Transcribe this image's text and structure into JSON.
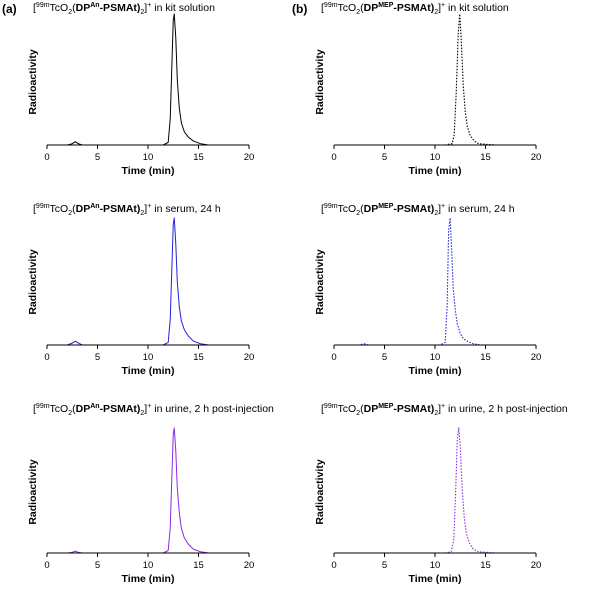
{
  "panel_labels": [
    "(a)",
    "(b)"
  ],
  "chart_data": [
    {
      "type": "line",
      "panel": "(a)",
      "title": "[99mTcO2(DPAn-PSMAt)2]+ in kit solution",
      "title_parts": {
        "pre": "[",
        "iso": "99m",
        "tc": "TcO",
        "sub": "2",
        "open": "(",
        "lig": "DP",
        "ligsup": "An",
        "rest": "-PSMAt)",
        "sub2": "2",
        "close": "]",
        "charge": "+",
        "tail": " in kit solution"
      },
      "xlabel": "Time (min)",
      "ylabel": "Radioactivity",
      "xlim": [
        0,
        20
      ],
      "ylim": [
        0,
        1
      ],
      "x_ticks": [
        0,
        5,
        10,
        15,
        20
      ],
      "line_color": "#000000",
      "line_style": "solid",
      "x": [
        0,
        2.0,
        2.5,
        2.8,
        3.1,
        3.5,
        4.0,
        9.0,
        11.5,
        12.0,
        12.2,
        12.4,
        12.5,
        12.6,
        12.75,
        12.9,
        13.1,
        13.3,
        13.6,
        14.0,
        14.5,
        15.2,
        16.0,
        18.0,
        20
      ],
      "y": [
        0,
        0,
        0.01,
        0.025,
        0.01,
        0,
        0,
        0,
        0,
        0.02,
        0.2,
        0.7,
        0.95,
        1.0,
        0.82,
        0.5,
        0.28,
        0.17,
        0.1,
        0.06,
        0.03,
        0.01,
        0,
        0,
        0
      ]
    },
    {
      "type": "line",
      "panel": "(b)",
      "title": "[99mTcO2(DPMEP-PSMAt)2]+ in kit solution",
      "title_parts": {
        "pre": "[",
        "iso": "99m",
        "tc": "TcO",
        "sub": "2",
        "open": "(",
        "lig": "DP",
        "ligsup": "MEP",
        "rest": "-PSMAt)",
        "sub2": "2",
        "close": "]",
        "charge": "+",
        "tail": " in kit solution"
      },
      "xlabel": "Time (min)",
      "ylabel": "Radioactivity",
      "xlim": [
        0,
        20
      ],
      "ylim": [
        0,
        1
      ],
      "x_ticks": [
        0,
        5,
        10,
        15,
        20
      ],
      "line_color": "#000000",
      "line_style": "dotted",
      "x": [
        0,
        3.0,
        11.0,
        11.7,
        11.9,
        12.1,
        12.3,
        12.45,
        12.6,
        12.8,
        13.0,
        13.2,
        13.5,
        13.9,
        14.3,
        16.0,
        20
      ],
      "y": [
        0,
        0,
        0,
        0.01,
        0.08,
        0.4,
        0.85,
        1.0,
        0.8,
        0.45,
        0.25,
        0.14,
        0.07,
        0.03,
        0.01,
        0,
        0
      ]
    },
    {
      "type": "line",
      "panel": "(a)",
      "title": "[99mTcO2(DPAn-PSMAt)2]+ in serum, 24 h",
      "title_parts": {
        "pre": "[",
        "iso": "99m",
        "tc": "TcO",
        "sub": "2",
        "open": "(",
        "lig": "DP",
        "ligsup": "An",
        "rest": "-PSMAt)",
        "sub2": "2",
        "close": "]",
        "charge": "+",
        "tail": " in serum, 24 h"
      },
      "xlabel": "Time (min)",
      "ylabel": "Radioactivity",
      "xlim": [
        0,
        20
      ],
      "ylim": [
        0,
        1
      ],
      "x_ticks": [
        0,
        5,
        10,
        15,
        20
      ],
      "line_color": "#2222dd",
      "line_style": "solid",
      "x": [
        0,
        2.0,
        2.5,
        2.8,
        3.1,
        3.5,
        4.0,
        9.0,
        11.5,
        12.0,
        12.2,
        12.4,
        12.5,
        12.6,
        12.75,
        12.9,
        13.1,
        13.3,
        13.6,
        14.0,
        14.5,
        15.2,
        16.0,
        18.0,
        20
      ],
      "y": [
        0,
        0,
        0.015,
        0.03,
        0.015,
        0,
        0,
        0,
        0,
        0.02,
        0.2,
        0.7,
        0.95,
        1.0,
        0.8,
        0.5,
        0.3,
        0.19,
        0.12,
        0.07,
        0.03,
        0.01,
        0,
        0,
        0
      ]
    },
    {
      "type": "line",
      "panel": "(b)",
      "title": "[99mTcO2(DPMEP-PSMAt)2]+ in serum, 24 h",
      "title_parts": {
        "pre": "[",
        "iso": "99m",
        "tc": "TcO",
        "sub": "2",
        "open": "(",
        "lig": "DP",
        "ligsup": "MEP",
        "rest": "-PSMAt)",
        "sub2": "2",
        "close": "]",
        "charge": "+",
        "tail": " in serum, 24 h"
      },
      "xlabel": "Time (min)",
      "ylabel": "Radioactivity",
      "xlim": [
        0,
        20
      ],
      "ylim": [
        0,
        1
      ],
      "x_ticks": [
        0,
        5,
        10,
        15,
        20
      ],
      "line_color": "#2222dd",
      "line_style": "dotted",
      "x": [
        0,
        2.5,
        3.0,
        3.4,
        4.0,
        10.5,
        11.0,
        11.2,
        11.35,
        11.5,
        11.65,
        11.8,
        12.0,
        12.2,
        12.5,
        12.8,
        13.2,
        13.8,
        14.5,
        20
      ],
      "y": [
        0,
        0,
        0.01,
        0,
        0,
        0,
        0.02,
        0.3,
        0.9,
        1.0,
        0.75,
        0.45,
        0.28,
        0.17,
        0.09,
        0.05,
        0.03,
        0.01,
        0,
        0
      ]
    },
    {
      "type": "line",
      "panel": "(a)",
      "title": "[99mTcO2(DPAn-PSMAt)2]+ in urine, 2 h post-injection",
      "title_parts": {
        "pre": "[",
        "iso": "99m",
        "tc": "TcO",
        "sub": "2",
        "open": "(",
        "lig": "DP",
        "ligsup": "An",
        "rest": "-PSMAt)",
        "sub2": "2",
        "close": "]",
        "charge": "+",
        "tail": " in urine, 2 h post-injection"
      },
      "xlabel": "Time (min)",
      "ylabel": "Radioactivity",
      "xlim": [
        0,
        20
      ],
      "ylim": [
        0,
        1
      ],
      "x_ticks": [
        0,
        5,
        10,
        15,
        20
      ],
      "line_color": "#8a2be2",
      "line_style": "solid",
      "x": [
        0,
        2.0,
        2.5,
        2.8,
        3.1,
        3.5,
        4.0,
        9.0,
        11.5,
        12.0,
        12.2,
        12.4,
        12.5,
        12.6,
        12.75,
        12.9,
        13.1,
        13.3,
        13.6,
        14.0,
        14.5,
        15.2,
        16.0,
        18.0,
        20
      ],
      "y": [
        0,
        0,
        0.005,
        0.015,
        0.005,
        0,
        0,
        0,
        0,
        0.02,
        0.2,
        0.7,
        0.95,
        1.0,
        0.82,
        0.52,
        0.32,
        0.2,
        0.12,
        0.07,
        0.03,
        0.01,
        0,
        0,
        0
      ]
    },
    {
      "type": "line",
      "panel": "(b)",
      "title": "[99mTcO2(DPMEP-PSMAt)2]+ in urine, 2 h post-injection",
      "title_parts": {
        "pre": "[",
        "iso": "99m",
        "tc": "TcO",
        "sub": "2",
        "open": "(",
        "lig": "DP",
        "ligsup": "MEP",
        "rest": "-PSMAt)",
        "sub2": "2",
        "close": "]",
        "charge": "+",
        "tail": " in urine, 2 h post-injection"
      },
      "xlabel": "Time (min)",
      "ylabel": "Radioactivity",
      "xlim": [
        0,
        20
      ],
      "ylim": [
        0,
        1
      ],
      "x_ticks": [
        0,
        5,
        10,
        15,
        20
      ],
      "line_color": "#8a2be2",
      "line_style": "dotted",
      "x": [
        0,
        3.0,
        11.0,
        11.6,
        11.85,
        12.05,
        12.2,
        12.35,
        12.5,
        12.7,
        12.9,
        13.1,
        13.4,
        13.8,
        14.3,
        16.0,
        20
      ],
      "y": [
        0,
        0,
        0,
        0.01,
        0.1,
        0.5,
        0.9,
        1.0,
        0.85,
        0.5,
        0.28,
        0.16,
        0.08,
        0.03,
        0.01,
        0,
        0
      ]
    }
  ]
}
